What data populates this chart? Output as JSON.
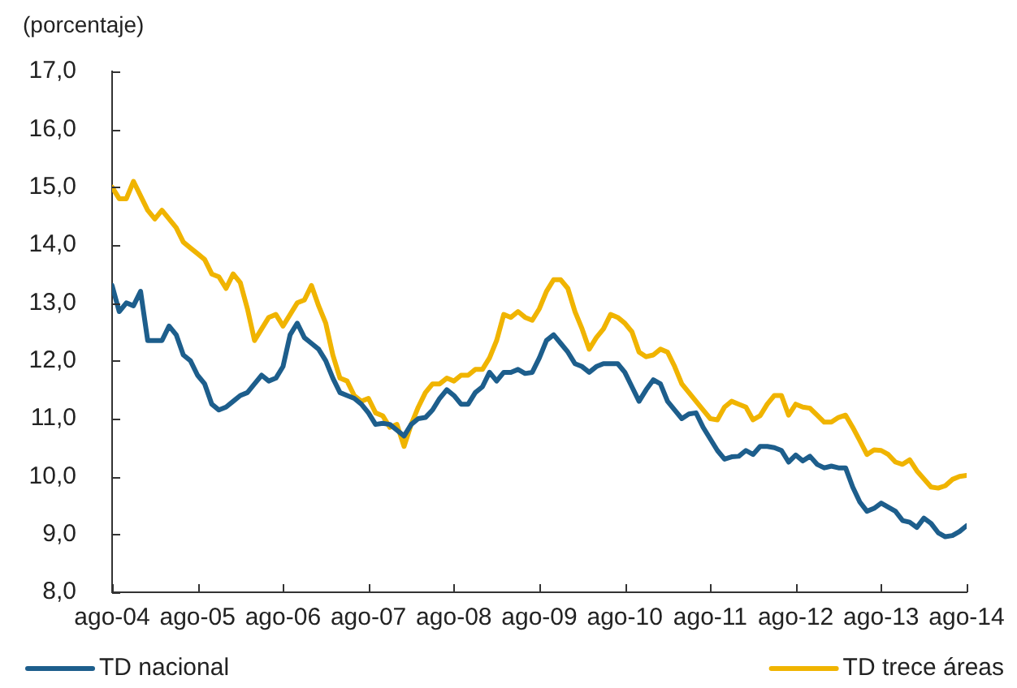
{
  "chart_data": {
    "type": "line",
    "ylabel": "(porcentaje)",
    "x": [
      "2004-08",
      "2004-09",
      "2004-10",
      "2004-11",
      "2004-12",
      "2005-01",
      "2005-02",
      "2005-03",
      "2005-04",
      "2005-05",
      "2005-06",
      "2005-07",
      "2005-08",
      "2005-09",
      "2005-10",
      "2005-11",
      "2005-12",
      "2006-01",
      "2006-02",
      "2006-03",
      "2006-04",
      "2006-05",
      "2006-06",
      "2006-07",
      "2006-08",
      "2006-09",
      "2006-10",
      "2006-11",
      "2006-12",
      "2007-01",
      "2007-02",
      "2007-03",
      "2007-04",
      "2007-05",
      "2007-06",
      "2007-07",
      "2007-08",
      "2007-09",
      "2007-10",
      "2007-11",
      "2007-12",
      "2008-01",
      "2008-02",
      "2008-03",
      "2008-04",
      "2008-05",
      "2008-06",
      "2008-07",
      "2008-08",
      "2008-09",
      "2008-10",
      "2008-11",
      "2008-12",
      "2009-01",
      "2009-02",
      "2009-03",
      "2009-04",
      "2009-05",
      "2009-06",
      "2009-07",
      "2009-08",
      "2009-09",
      "2009-10",
      "2009-11",
      "2009-12",
      "2010-01",
      "2010-02",
      "2010-03",
      "2010-04",
      "2010-05",
      "2010-06",
      "2010-07",
      "2010-08",
      "2010-09",
      "2010-10",
      "2010-11",
      "2010-12",
      "2011-01",
      "2011-02",
      "2011-03",
      "2011-04",
      "2011-05",
      "2011-06",
      "2011-07",
      "2011-08",
      "2011-09",
      "2011-10",
      "2011-11",
      "2011-12",
      "2012-01",
      "2012-02",
      "2012-03",
      "2012-04",
      "2012-05",
      "2012-06",
      "2012-07",
      "2012-08",
      "2012-09",
      "2012-10",
      "2012-11",
      "2012-12",
      "2013-01",
      "2013-02",
      "2013-03",
      "2013-04",
      "2013-05",
      "2013-06",
      "2013-07",
      "2013-08",
      "2013-09",
      "2013-10",
      "2013-11",
      "2013-12",
      "2014-01",
      "2014-02",
      "2014-03",
      "2014-04",
      "2014-05",
      "2014-06",
      "2014-07",
      "2014-08"
    ],
    "series": [
      {
        "name": "TD nacional",
        "color": "#1d5e8c",
        "values": [
          13.3,
          12.85,
          13.0,
          12.95,
          13.2,
          12.35,
          12.35,
          12.35,
          12.6,
          12.45,
          12.1,
          12.0,
          11.75,
          11.6,
          11.25,
          11.15,
          11.2,
          11.3,
          11.4,
          11.45,
          11.6,
          11.75,
          11.65,
          11.7,
          11.9,
          12.45,
          12.65,
          12.4,
          12.3,
          12.2,
          12.0,
          11.7,
          11.45,
          11.4,
          11.35,
          11.25,
          11.1,
          10.9,
          10.92,
          10.9,
          10.8,
          10.7,
          10.9,
          11.0,
          11.02,
          11.15,
          11.35,
          11.5,
          11.4,
          11.25,
          11.25,
          11.45,
          11.55,
          11.8,
          11.65,
          11.8,
          11.8,
          11.85,
          11.78,
          11.8,
          12.05,
          12.35,
          12.45,
          12.3,
          12.15,
          11.95,
          11.9,
          11.8,
          11.9,
          11.95,
          11.95,
          11.95,
          11.8,
          11.55,
          11.3,
          11.5,
          11.67,
          11.6,
          11.3,
          11.15,
          11.0,
          11.08,
          11.1,
          10.85,
          10.65,
          10.45,
          10.3,
          10.34,
          10.35,
          10.45,
          10.38,
          10.52,
          10.52,
          10.5,
          10.45,
          10.25,
          10.37,
          10.27,
          10.35,
          10.21,
          10.15,
          10.18,
          10.15,
          10.15,
          9.82,
          9.56,
          9.4,
          9.45,
          9.54,
          9.47,
          9.4,
          9.24,
          9.21,
          9.12,
          9.28,
          9.19,
          9.03,
          8.96,
          8.98,
          9.05,
          9.15
        ]
      },
      {
        "name": "TD trece áreas",
        "color": "#f0b400",
        "values": [
          15.0,
          14.8,
          14.8,
          15.1,
          14.85,
          14.6,
          14.45,
          14.6,
          14.45,
          14.3,
          14.05,
          13.95,
          13.85,
          13.75,
          13.5,
          13.45,
          13.25,
          13.5,
          13.35,
          12.9,
          12.35,
          12.55,
          12.75,
          12.8,
          12.6,
          12.8,
          13.0,
          13.05,
          13.3,
          12.95,
          12.65,
          12.1,
          11.7,
          11.65,
          11.4,
          11.3,
          11.35,
          11.1,
          11.05,
          10.85,
          10.9,
          10.52,
          10.9,
          11.2,
          11.45,
          11.6,
          11.6,
          11.7,
          11.65,
          11.75,
          11.75,
          11.85,
          11.85,
          12.05,
          12.35,
          12.8,
          12.75,
          12.85,
          12.75,
          12.7,
          12.9,
          13.2,
          13.4,
          13.4,
          13.25,
          12.85,
          12.55,
          12.2,
          12.4,
          12.55,
          12.8,
          12.75,
          12.65,
          12.5,
          12.15,
          12.07,
          12.1,
          12.2,
          12.15,
          11.9,
          11.6,
          11.45,
          11.3,
          11.15,
          11.0,
          10.98,
          11.2,
          11.3,
          11.25,
          11.2,
          10.98,
          11.05,
          11.25,
          11.4,
          11.4,
          11.06,
          11.25,
          11.2,
          11.18,
          11.06,
          10.94,
          10.94,
          11.02,
          11.06,
          10.85,
          10.62,
          10.38,
          10.46,
          10.45,
          10.38,
          10.25,
          10.21,
          10.29,
          10.1,
          9.96,
          9.82,
          9.8,
          9.84,
          9.95,
          10.0,
          10.02
        ]
      }
    ],
    "xlim": [
      "2004-08",
      "2014-08"
    ],
    "xticks": [
      {
        "value": "2004-08",
        "label": "ago-04"
      },
      {
        "value": "2005-08",
        "label": "ago-05"
      },
      {
        "value": "2006-08",
        "label": "ago-06"
      },
      {
        "value": "2007-08",
        "label": "ago-07"
      },
      {
        "value": "2008-08",
        "label": "ago-08"
      },
      {
        "value": "2009-08",
        "label": "ago-09"
      },
      {
        "value": "2010-08",
        "label": "ago-10"
      },
      {
        "value": "2011-08",
        "label": "ago-11"
      },
      {
        "value": "2012-08",
        "label": "ago-12"
      },
      {
        "value": "2013-08",
        "label": "ago-13"
      },
      {
        "value": "2014-08",
        "label": "ago-14"
      }
    ],
    "ylim": [
      8,
      17
    ],
    "yticks": [
      {
        "value": 8,
        "label": "8,0"
      },
      {
        "value": 9,
        "label": "9,0"
      },
      {
        "value": 10,
        "label": "10,0"
      },
      {
        "value": 11,
        "label": "11,0"
      },
      {
        "value": 12,
        "label": "12,0"
      },
      {
        "value": 13,
        "label": "13,0"
      },
      {
        "value": 14,
        "label": "14,0"
      },
      {
        "value": 15,
        "label": "15,0"
      },
      {
        "value": 16,
        "label": "16,0"
      },
      {
        "value": 17,
        "label": "17,0"
      }
    ],
    "grid": false,
    "legend": "bottom",
    "marker": "none"
  }
}
